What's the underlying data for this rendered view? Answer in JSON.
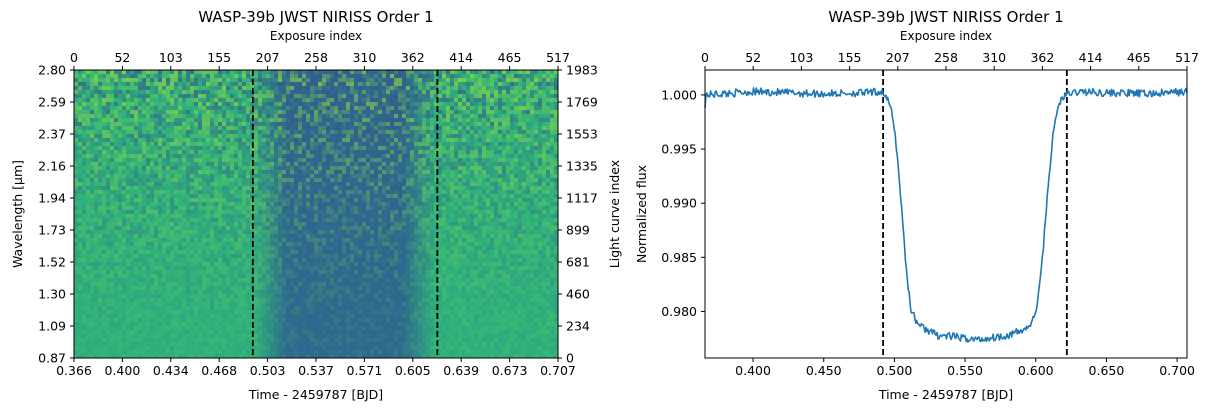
{
  "chart_data": [
    {
      "type": "heatmap",
      "title": "WASP-39b JWST NIRISS Order 1",
      "xlabel": "Time - 2459787 [BJD]",
      "ylabel": "Wavelength [μm]",
      "top_xlabel": "Exposure index",
      "right_ylabel": "Light curve index",
      "x_ticks": [
        "0.366",
        "0.400",
        "0.434",
        "0.468",
        "0.503",
        "0.537",
        "0.571",
        "0.605",
        "0.639",
        "0.673",
        "0.707"
      ],
      "y_ticks": [
        "0.87",
        "1.09",
        "1.30",
        "1.52",
        "1.73",
        "1.94",
        "2.16",
        "2.37",
        "2.59",
        "2.80"
      ],
      "top_ticks": [
        "0",
        "52",
        "103",
        "155",
        "207",
        "258",
        "310",
        "362",
        "414",
        "465",
        "517"
      ],
      "right_ticks": [
        "0",
        "234",
        "460",
        "681",
        "899",
        "1117",
        "1335",
        "1553",
        "1769",
        "1983"
      ],
      "xlim": [
        0.366,
        0.707
      ],
      "ylim": [
        0.87,
        2.8
      ],
      "exposure_range": [
        0,
        517
      ],
      "light_curve_range": [
        0,
        1983
      ],
      "transit_start": 0.492,
      "transit_end": 0.622,
      "in_transit_level": 0.977,
      "colormap": "viridis",
      "colors": {
        "out_of_transit": "#2eb27c",
        "in_transit": "#2c6b8e",
        "noise_light": "#9bd93c",
        "noise_dark": "#3b528b",
        "marker": "#000000"
      }
    },
    {
      "type": "line",
      "title": "WASP-39b JWST NIRISS Order 1",
      "xlabel": "Time - 2459787 [BJD]",
      "ylabel": "Normalized flux",
      "top_xlabel": "Exposure index",
      "x_ticks": [
        "0.400",
        "0.450",
        "0.500",
        "0.550",
        "0.600",
        "0.650",
        "0.700"
      ],
      "y_ticks": [
        "0.980",
        "0.985",
        "0.990",
        "0.995",
        "1.000"
      ],
      "top_ticks": [
        "0",
        "52",
        "103",
        "155",
        "207",
        "258",
        "310",
        "362",
        "414",
        "465",
        "517"
      ],
      "xlim": [
        0.366,
        0.707
      ],
      "ylim": [
        0.9757,
        1.0023
      ],
      "exposure_range": [
        0,
        517
      ],
      "series": [
        {
          "color": "#1f77b4",
          "x": [
            0.366,
            0.4,
            0.45,
            0.48,
            0.492,
            0.497,
            0.5,
            0.503,
            0.506,
            0.509,
            0.512,
            0.516,
            0.52,
            0.525,
            0.53,
            0.54,
            0.55,
            0.56,
            0.57,
            0.58,
            0.59,
            0.597,
            0.6,
            0.603,
            0.606,
            0.609,
            0.612,
            0.615,
            0.618,
            0.621,
            0.63,
            0.65,
            0.68,
            0.707
          ],
          "y": [
            1.0,
            1.0003,
            1.0001,
            1.0002,
            1.0003,
            0.999,
            0.997,
            0.993,
            0.988,
            0.983,
            0.98,
            0.979,
            0.9785,
            0.9782,
            0.9778,
            0.9777,
            0.9775,
            0.9774,
            0.9776,
            0.9778,
            0.9782,
            0.9788,
            0.98,
            0.9825,
            0.987,
            0.992,
            0.996,
            0.9985,
            0.9996,
            1.0,
            1.0003,
            1.0002,
            1.0001,
            1.0003
          ]
        }
      ],
      "vlines": [
        0.492,
        0.622
      ]
    }
  ]
}
